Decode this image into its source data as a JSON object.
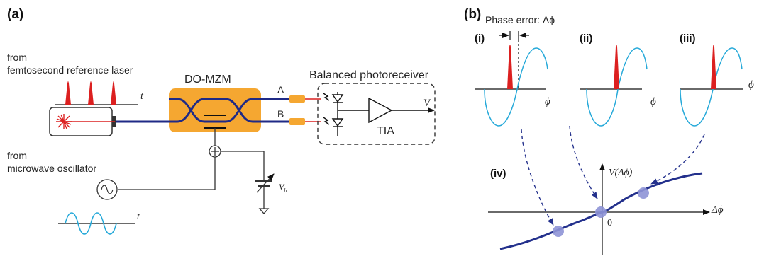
{
  "panel_a": {
    "label": "(a)",
    "laser_from": "from",
    "laser_source": "femtosecond reference laser",
    "pulse_axis": "t",
    "modulator": "DO-MZM",
    "port_a": "A",
    "port_b": "B",
    "receiver": "Balanced photoreceiver",
    "amplifier": "TIA",
    "output": "V",
    "osc_from": "from",
    "osc_source": "microwave oscillator",
    "bias": "V",
    "bias_sub": "b",
    "sine_axis": "t"
  },
  "panel_b": {
    "label": "(b)",
    "phase_error": "Phase error: Δϕ",
    "cases": [
      {
        "label": "(i)",
        "axis": "ϕ"
      },
      {
        "label": "(ii)",
        "axis": "ϕ"
      },
      {
        "label": "(iii)",
        "axis": "ϕ"
      }
    ],
    "curve_label": "(iv)",
    "y_axis": "V(Δϕ)",
    "x_axis": "Δϕ",
    "origin": "0"
  },
  "colors": {
    "waveguide": "#1f2a86",
    "modulator_fill": "#f5a731",
    "pulse": "#dc2020",
    "sine": "#26a9d9",
    "curve": "#23308c",
    "dot": "#8e93d6"
  }
}
